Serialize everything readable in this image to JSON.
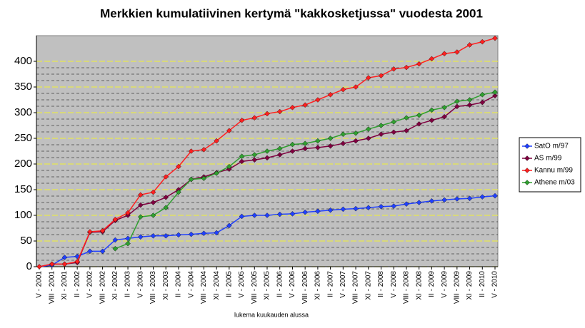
{
  "chart_data": {
    "type": "line",
    "title": "Merkkien kumulatiivinen kertymä \"kakkosketjussa\" vuodesta 2001",
    "x_label": "lukema kuukauden alussa",
    "categories": [
      "V - 2001",
      "VIII - 2001",
      "XI - 2001",
      "II - 2002",
      "V - 2002",
      "VIII - 2002",
      "XI - 2002",
      "II - 2003",
      "V - 2003",
      "VIII - 2003",
      "XI - 2003",
      "II - 2004",
      "V - 2004",
      "VIII - 2004",
      "XI - 2004",
      "II - 2005",
      "V - 2005",
      "VIII - 2005",
      "XI - 2005",
      "II - 2006",
      "V - 2006",
      "VIII - 2006",
      "XI - 2006",
      "II - 2007",
      "V - 2007",
      "VIII - 2007",
      "XI - 2007",
      "II - 2008",
      "V - 2008",
      "VIII - 2008",
      "XI - 2008",
      "II - 2009",
      "V - 2009",
      "VIII - 2009",
      "XI - 2009",
      "II - 2010",
      "V - 2010"
    ],
    "series": [
      {
        "name": "SatO m/97",
        "color": "#2040ff",
        "values": [
          0,
          3,
          18,
          20,
          30,
          30,
          52,
          55,
          58,
          60,
          60,
          62,
          63,
          65,
          66,
          80,
          98,
          100,
          100,
          102,
          103,
          106,
          108,
          110,
          112,
          113,
          115,
          117,
          118,
          122,
          125,
          128,
          130,
          132,
          133,
          136,
          138
        ]
      },
      {
        "name": "AS m/99",
        "color": "#800040",
        "values": [
          0,
          5,
          5,
          8,
          67,
          68,
          90,
          100,
          120,
          125,
          135,
          150,
          170,
          175,
          183,
          190,
          205,
          208,
          212,
          218,
          225,
          230,
          232,
          235,
          240,
          245,
          250,
          258,
          262,
          265,
          278,
          285,
          292,
          312,
          315,
          320,
          333
        ]
      },
      {
        "name": "Kannu m/99",
        "color": "#ff2020",
        "values": [
          0,
          5,
          5,
          10,
          68,
          70,
          92,
          105,
          140,
          145,
          175,
          195,
          225,
          228,
          245,
          265,
          285,
          290,
          298,
          302,
          310,
          315,
          325,
          335,
          345,
          350,
          368,
          372,
          385,
          388,
          395,
          405,
          415,
          418,
          432,
          438,
          445
        ]
      },
      {
        "name": "Athene m/03",
        "color": "#30a030",
        "values": [
          null,
          null,
          null,
          null,
          null,
          null,
          35,
          45,
          97,
          100,
          115,
          145,
          170,
          172,
          182,
          195,
          215,
          218,
          225,
          230,
          238,
          240,
          245,
          250,
          258,
          260,
          268,
          275,
          282,
          290,
          295,
          305,
          310,
          322,
          325,
          335,
          340
        ]
      }
    ],
    "ylim": [
      0,
      450
    ],
    "yticks": [
      0,
      50,
      100,
      150,
      200,
      250,
      300,
      350,
      400
    ],
    "grid": true,
    "legend": "right"
  }
}
